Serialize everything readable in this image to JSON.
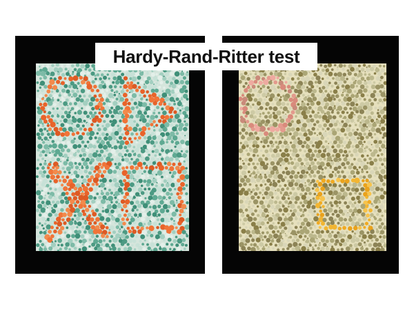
{
  "title": "Hardy-Rand-Ritter test",
  "plates": [
    {
      "name": "left-plate",
      "background_dot_colors": [
        "#3f8f78",
        "#4c9a83",
        "#5ea992",
        "#7dbba7",
        "#a3cfc0",
        "#c7e1d7",
        "#e3efe9"
      ],
      "figure_dot_colors": [
        "#e8632a",
        "#f07438",
        "#dd5a24",
        "#f28a4c"
      ],
      "shapes": [
        "circle",
        "triangle",
        "cross",
        "square"
      ]
    },
    {
      "name": "right-plate",
      "background_dot_colors": [
        "#8c8356",
        "#9b9465",
        "#aaa575",
        "#bcb88d",
        "#cdcaa5",
        "#8a7f49",
        "#d9d6b8"
      ],
      "figure_dot_colors": {
        "circle": [
          "#e39a8d",
          "#d98a7c",
          "#eeaaa0",
          "#c98a7a"
        ],
        "square": [
          "#f2b531",
          "#f0aa22",
          "#f7c34c",
          "#e9a21c"
        ]
      },
      "shapes": [
        "circle",
        "square"
      ]
    }
  ]
}
